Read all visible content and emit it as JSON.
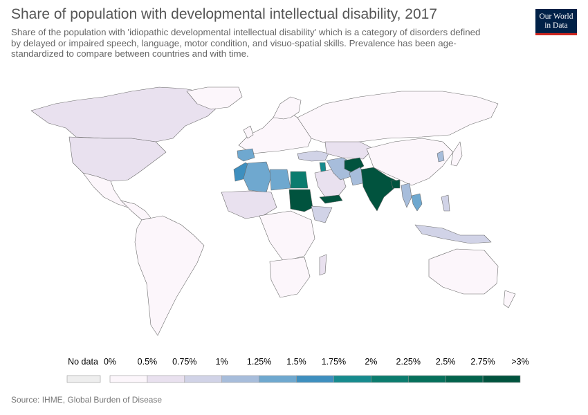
{
  "header": {
    "title": "Share of population with developmental intellectual disability, 2017",
    "subtitle": "Share of the population with 'idiopathic developmental intellectual disability' which is a category of disorders defined by delayed or impaired speech, language, motor condition, and visuo-spatial skills. Prevalence has been age-standardized to compare between countries and with time.",
    "logo_line1": "Our World",
    "logo_line2": "in Data"
  },
  "legend": {
    "no_data_label": "No data",
    "no_data_color": "#eeeeee",
    "labels": [
      "0%",
      "0.5%",
      "0.75%",
      "1%",
      "1.25%",
      "1.5%",
      "1.75%",
      "2%",
      "2.25%",
      "2.5%",
      "2.75%",
      ">3%"
    ],
    "bin_colors": [
      "#fcf6fb",
      "#e9e1ef",
      "#d1d3e7",
      "#a7bddb",
      "#6fa8cf",
      "#3e8fbf",
      "#168b8e",
      "#0b7c6e",
      "#06705b",
      "#03634c",
      "#01533e"
    ]
  },
  "map_data": {
    "type": "choropleth",
    "metric": "Share of population with developmental intellectual disability (%)",
    "year": 2017,
    "highlighted_regions": [
      {
        "region": "Afghanistan",
        "bin": ">3%"
      },
      {
        "region": "India",
        "bin": ">3%"
      },
      {
        "region": "Pakistan",
        "bin": "1.25%"
      },
      {
        "region": "Bangladesh",
        "bin": ">3%"
      },
      {
        "region": "Sudan",
        "bin": ">3%"
      },
      {
        "region": "Yemen",
        "bin": ">3%"
      },
      {
        "region": "Egypt",
        "bin": "2%"
      },
      {
        "region": "Jordan",
        "bin": "1.75%"
      },
      {
        "region": "Algeria",
        "bin": "1.25%"
      },
      {
        "region": "Morocco",
        "bin": "1.5%"
      },
      {
        "region": "Iran",
        "bin": "1%"
      },
      {
        "region": "Myanmar",
        "bin": "1%"
      },
      {
        "region": "Thailand",
        "bin": "1.25%"
      }
    ]
  },
  "footer": {
    "source": "Source: IHME, Global Burden of Disease"
  }
}
